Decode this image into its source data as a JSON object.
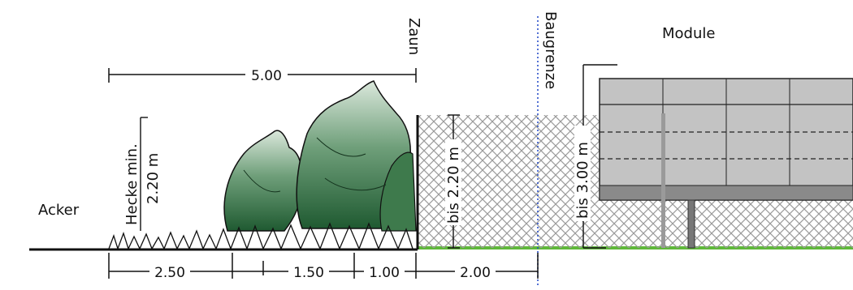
{
  "labels": {
    "acker": "Acker",
    "hecke_line1": "Hecke min.",
    "hecke_line2": "2.20 m",
    "zaun": "Zaun",
    "baugrenze": "Baugrenze",
    "module": "Module",
    "fence_height": "bis 2.20 m",
    "module_height": "bis 3.00 m"
  },
  "dimensions": {
    "total": "5.00",
    "hedge_left": "2.50",
    "hedge_mid": "1.50",
    "hedge_right": "1.00",
    "setback": "2.00"
  },
  "colors": {
    "ground_field": "#111111",
    "grass_strip": "#5fb83a",
    "hedge": "#2f6b3f",
    "hedge_light": "#dbe8dc",
    "fence_mesh": "#9a9a9a",
    "panel": "#c8c8c8",
    "baugrenze_line": "#2a4fc9"
  }
}
